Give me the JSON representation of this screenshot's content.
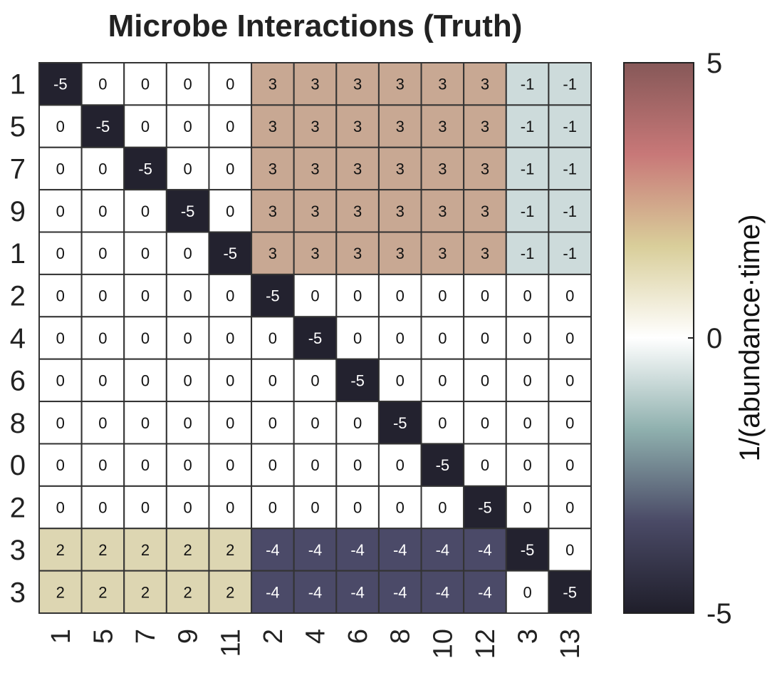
{
  "chart_data": {
    "type": "heatmap",
    "title": "Microbe Interactions (Truth)",
    "row_labels": [
      "1",
      "5",
      "7",
      "9",
      "1",
      "2",
      "4",
      "6",
      "8",
      "0",
      "2",
      "3",
      "3"
    ],
    "col_labels": [
      "1",
      "5",
      "7",
      "9",
      "11",
      "2",
      "4",
      "6",
      "8",
      "10",
      "12",
      "3",
      "13"
    ],
    "values": [
      [
        -5,
        0,
        0,
        0,
        0,
        3,
        3,
        3,
        3,
        3,
        3,
        -1,
        -1
      ],
      [
        0,
        -5,
        0,
        0,
        0,
        3,
        3,
        3,
        3,
        3,
        3,
        -1,
        -1
      ],
      [
        0,
        0,
        -5,
        0,
        0,
        3,
        3,
        3,
        3,
        3,
        3,
        -1,
        -1
      ],
      [
        0,
        0,
        0,
        -5,
        0,
        3,
        3,
        3,
        3,
        3,
        3,
        -1,
        -1
      ],
      [
        0,
        0,
        0,
        0,
        -5,
        3,
        3,
        3,
        3,
        3,
        3,
        -1,
        -1
      ],
      [
        0,
        0,
        0,
        0,
        0,
        -5,
        0,
        0,
        0,
        0,
        0,
        0,
        0
      ],
      [
        0,
        0,
        0,
        0,
        0,
        0,
        -5,
        0,
        0,
        0,
        0,
        0,
        0
      ],
      [
        0,
        0,
        0,
        0,
        0,
        0,
        0,
        -5,
        0,
        0,
        0,
        0,
        0
      ],
      [
        0,
        0,
        0,
        0,
        0,
        0,
        0,
        0,
        -5,
        0,
        0,
        0,
        0
      ],
      [
        0,
        0,
        0,
        0,
        0,
        0,
        0,
        0,
        0,
        -5,
        0,
        0,
        0
      ],
      [
        0,
        0,
        0,
        0,
        0,
        0,
        0,
        0,
        0,
        0,
        -5,
        0,
        0
      ],
      [
        2,
        2,
        2,
        2,
        2,
        -4,
        -4,
        -4,
        -4,
        -4,
        -4,
        -5,
        0
      ],
      [
        2,
        2,
        2,
        2,
        2,
        -4,
        -4,
        -4,
        -4,
        -4,
        -4,
        0,
        -5
      ]
    ],
    "value_range": [
      -5,
      5
    ],
    "colorbar": {
      "label": "1/(abundance·time)",
      "ticks": [
        "5",
        "0",
        "-5"
      ],
      "placement": "right"
    },
    "colors": {
      "-5": "#23222f",
      "-4": "#4b4a68",
      "-1": "#cddbdb",
      "0": "#ffffff",
      "2": "#ddd6b2",
      "3": "#c8a893"
    },
    "colormap_stops": [
      "#865858",
      "#c87878",
      "#d9ce9a",
      "#ffffff",
      "#8fb0ae",
      "#4a4a66",
      "#1f1e2a"
    ]
  }
}
